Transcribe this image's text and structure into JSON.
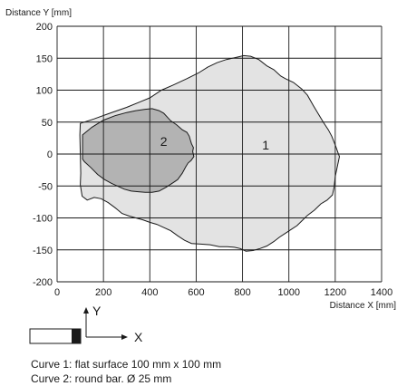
{
  "chart_data": {
    "type": "area",
    "xlabel": "Distance X [mm]",
    "ylabel": "Distance Y [mm]",
    "xlim": [
      0,
      1400
    ],
    "ylim": [
      -200,
      200
    ],
    "x_ticks": [
      0,
      200,
      400,
      600,
      800,
      1000,
      1200,
      1400
    ],
    "y_ticks": [
      200,
      150,
      100,
      50,
      0,
      -50,
      -100,
      -150,
      -200
    ],
    "grid": true,
    "colors": {
      "curve1": "#e3e3e3",
      "curve2": "#b3b3b3",
      "outline": "#1a1a1a",
      "grid": "#1a1a1a"
    },
    "series": [
      {
        "name": "1",
        "points": [
          [
            100,
            48
          ],
          [
            160,
            55
          ],
          [
            220,
            63
          ],
          [
            300,
            73
          ],
          [
            360,
            82
          ],
          [
            400,
            88
          ],
          [
            450,
            100
          ],
          [
            500,
            108
          ],
          [
            560,
            118
          ],
          [
            610,
            127
          ],
          [
            650,
            136
          ],
          [
            690,
            143
          ],
          [
            730,
            148
          ],
          [
            770,
            151
          ],
          [
            805,
            154
          ],
          [
            835,
            153
          ],
          [
            870,
            148
          ],
          [
            905,
            138
          ],
          [
            935,
            132
          ],
          [
            965,
            122
          ],
          [
            985,
            118
          ],
          [
            1020,
            112
          ],
          [
            1055,
            102
          ],
          [
            1080,
            92
          ],
          [
            1105,
            76
          ],
          [
            1125,
            64
          ],
          [
            1150,
            49
          ],
          [
            1170,
            38
          ],
          [
            1185,
            28
          ],
          [
            1200,
            14
          ],
          [
            1212,
            2
          ],
          [
            1218,
            -4
          ],
          [
            1210,
            -18
          ],
          [
            1200,
            -35
          ],
          [
            1195,
            -52
          ],
          [
            1188,
            -64
          ],
          [
            1165,
            -72
          ],
          [
            1138,
            -78
          ],
          [
            1110,
            -88
          ],
          [
            1080,
            -96
          ],
          [
            1055,
            -105
          ],
          [
            1035,
            -112
          ],
          [
            1010,
            -118
          ],
          [
            985,
            -124
          ],
          [
            960,
            -130
          ],
          [
            935,
            -137
          ],
          [
            905,
            -144
          ],
          [
            875,
            -148
          ],
          [
            845,
            -151
          ],
          [
            815,
            -152
          ],
          [
            790,
            -148
          ],
          [
            765,
            -146
          ],
          [
            735,
            -145
          ],
          [
            700,
            -145
          ],
          [
            660,
            -142
          ],
          [
            620,
            -141
          ],
          [
            580,
            -140
          ],
          [
            550,
            -135
          ],
          [
            520,
            -128
          ],
          [
            490,
            -120
          ],
          [
            460,
            -115
          ],
          [
            430,
            -110
          ],
          [
            400,
            -107
          ],
          [
            370,
            -103
          ],
          [
            340,
            -100
          ],
          [
            310,
            -97
          ],
          [
            280,
            -93
          ],
          [
            250,
            -84
          ],
          [
            220,
            -76
          ],
          [
            190,
            -70
          ],
          [
            160,
            -68
          ],
          [
            130,
            -72
          ],
          [
            108,
            -66
          ],
          [
            100,
            -48
          ],
          [
            102,
            -30
          ],
          [
            100,
            0
          ],
          [
            98,
            30
          ]
        ]
      },
      {
        "name": "2",
        "points": [
          [
            110,
            30
          ],
          [
            150,
            42
          ],
          [
            200,
            53
          ],
          [
            250,
            60
          ],
          [
            300,
            65
          ],
          [
            340,
            68
          ],
          [
            380,
            70
          ],
          [
            410,
            71
          ],
          [
            440,
            68
          ],
          [
            460,
            64
          ],
          [
            490,
            52
          ],
          [
            515,
            46
          ],
          [
            540,
            38
          ],
          [
            560,
            34
          ],
          [
            570,
            28
          ],
          [
            575,
            22
          ],
          [
            580,
            16
          ],
          [
            588,
            10
          ],
          [
            585,
            4
          ],
          [
            590,
            -4
          ],
          [
            578,
            -10
          ],
          [
            565,
            -14
          ],
          [
            555,
            -20
          ],
          [
            540,
            -30
          ],
          [
            520,
            -40
          ],
          [
            500,
            -45
          ],
          [
            470,
            -52
          ],
          [
            440,
            -58
          ],
          [
            410,
            -60
          ],
          [
            380,
            -60
          ],
          [
            350,
            -59
          ],
          [
            320,
            -58
          ],
          [
            290,
            -55
          ],
          [
            260,
            -50
          ],
          [
            235,
            -46
          ],
          [
            205,
            -40
          ],
          [
            175,
            -32
          ],
          [
            145,
            -21
          ],
          [
            118,
            -12
          ],
          [
            110,
            -8
          ]
        ]
      }
    ]
  },
  "legend": {
    "x_label": "X",
    "y_label": "Y"
  },
  "captions": {
    "curve1": "Curve 1: flat surface 100 mm x 100 mm",
    "curve2": "Curve 2: round bar. Ø 25 mm"
  }
}
